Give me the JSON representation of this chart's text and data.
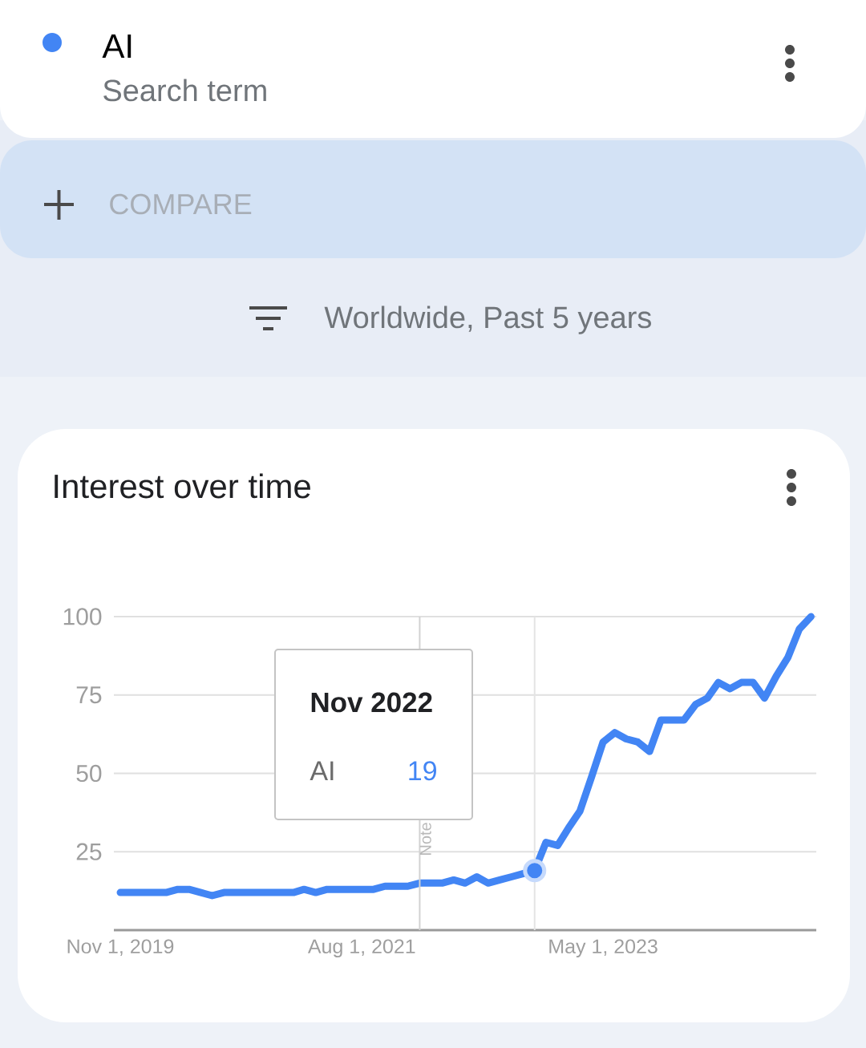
{
  "chart_data": {
    "type": "line",
    "title": "Interest over time",
    "subtitle": "Worldwide, Past 5 years",
    "annotations": [
      "Search term",
      "COMPARE",
      "Nov 2022",
      "19"
    ],
    "x": [
      "2019-11",
      "2019-12",
      "2020-01",
      "2020-02",
      "2020-03",
      "2020-04",
      "2020-05",
      "2020-06",
      "2020-07",
      "2020-08",
      "2020-09",
      "2020-10",
      "2020-11",
      "2020-12",
      "2021-01",
      "2021-02",
      "2021-03",
      "2021-04",
      "2021-05",
      "2021-06",
      "2021-07",
      "2021-08",
      "2021-09",
      "2021-10",
      "2021-11",
      "2021-12",
      "2022-01",
      "2022-02",
      "2022-03",
      "2022-04",
      "2022-05",
      "2022-06",
      "2022-07",
      "2022-08",
      "2022-09",
      "2022-10",
      "2022-11",
      "2022-12",
      "2023-01",
      "2023-02",
      "2023-03",
      "2023-04",
      "2023-05",
      "2023-06",
      "2023-07",
      "2023-08",
      "2023-09",
      "2023-10",
      "2023-11",
      "2023-12",
      "2024-01",
      "2024-02",
      "2024-03",
      "2024-04",
      "2024-05",
      "2024-06",
      "2024-07",
      "2024-08",
      "2024-09",
      "2024-10",
      "2024-11"
    ],
    "series": [
      {
        "name": "AI",
        "color": "#4285f4",
        "values": [
          12,
          12,
          12,
          12,
          12,
          13,
          13,
          12,
          11,
          12,
          12,
          12,
          12,
          12,
          12,
          12,
          13,
          12,
          13,
          13,
          13,
          13,
          13,
          14,
          14,
          14,
          15,
          15,
          15,
          16,
          15,
          17,
          15,
          16,
          17,
          18,
          19,
          28,
          27,
          33,
          38,
          49,
          60,
          63,
          61,
          60,
          57,
          67,
          67,
          67,
          72,
          74,
          79,
          77,
          79,
          79,
          74,
          81,
          87,
          96,
          100
        ]
      },
      {
        "type": "scatter",
        "color": "#4285f4",
        "x": [
          "2022-11"
        ],
        "values": [
          19
        ]
      }
    ],
    "xlim": [
      "2019-10-15",
      "2024-11-15"
    ],
    "ylim": [
      0,
      100
    ],
    "xticks": [
      {
        "value": "2019-11-01",
        "label": "Nov 1, 2019"
      },
      {
        "value": "2021-08-01",
        "label": "Aug 1, 2021"
      },
      {
        "value": "2023-05-01",
        "label": "May 1, 2023"
      }
    ],
    "yticks": [
      25,
      50,
      75,
      100
    ],
    "ref_lines": [
      {
        "axis": "x",
        "value": "2022-01-01",
        "label": "Note",
        "color": "#d2d2d2"
      },
      {
        "axis": "x",
        "value": "2022-11-01",
        "color": "#e4e4e4"
      }
    ],
    "grid": "y",
    "legend": "top left"
  }
}
